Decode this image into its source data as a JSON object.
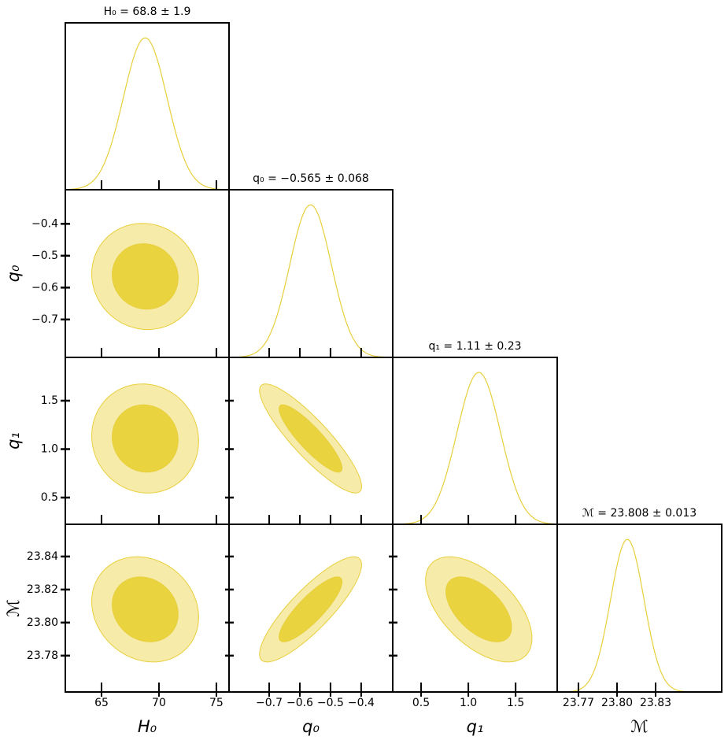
{
  "chart_data": {
    "type": "corner",
    "line_color": "#e8cf3c",
    "contours": [
      {
        "level": 0.95,
        "color": "#f6eba9"
      },
      {
        "level": 0.68,
        "color": "#e9d43f"
      }
    ],
    "parameters": [
      {
        "name": "H₀",
        "title": "H₀ = 68.8 ± 1.9",
        "mean": 68.8,
        "sigma": 1.9,
        "xlim": [
          61.85,
          76.1
        ],
        "xticks": [
          65,
          70,
          75
        ]
      },
      {
        "name": "q₀",
        "title": "q₀ = −0.565 ± 0.068",
        "mean": -0.565,
        "sigma": 0.068,
        "xlim": [
          -0.831,
          -0.297
        ],
        "ylim": [
          -0.819,
          -0.293
        ],
        "xticks": [
          {
            "value": -0.7,
            "label": "−0.7"
          },
          {
            "value": -0.6,
            "label": "−0.6"
          },
          {
            "value": -0.5,
            "label": "−0.5"
          },
          {
            "value": -0.4,
            "label": "−0.4"
          }
        ],
        "yticks": [
          {
            "value": -0.4,
            "label": "−0.4"
          },
          {
            "value": -0.5,
            "label": "−0.5"
          },
          {
            "value": -0.6,
            "label": "−0.6"
          },
          {
            "value": -0.7,
            "label": "−0.7"
          }
        ]
      },
      {
        "name": "q₁",
        "title": "q₁ = 1.11 ± 0.23",
        "mean": 1.11,
        "sigma": 0.23,
        "xlim": [
          0.2,
          1.94
        ],
        "ylim": [
          0.224,
          1.947
        ],
        "xticks": [
          0.5,
          {
            "value": 1.0,
            "label": "1.0"
          },
          1.5
        ],
        "yticks": [
          1.5,
          {
            "value": 1.0,
            "label": "1.0"
          },
          0.5
        ]
      },
      {
        "name": "ℳ",
        "title": "ℳ = 23.808 ± 0.013",
        "mean": 23.808,
        "sigma": 0.013,
        "xlim": [
          23.7535,
          23.8814
        ],
        "ylim": [
          23.758,
          23.8595
        ],
        "xticks": [
          23.77,
          {
            "value": 23.8,
            "label": "23.80"
          },
          23.83
        ],
        "yticks": [
          23.84,
          23.82,
          {
            "value": 23.8,
            "label": "23.80"
          },
          23.78
        ]
      }
    ],
    "correlation_rows": [
      [
        -0.05
      ],
      [
        -0.05,
        -0.88
      ],
      [
        -0.15,
        0.85,
        -0.55
      ]
    ]
  }
}
